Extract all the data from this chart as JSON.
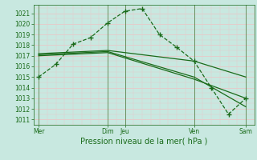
{
  "bg_color": "#c8e8e0",
  "grid_color": "#e8c8c8",
  "line_color": "#1a6b1a",
  "title": "Pression niveau de la mer( hPa )",
  "ylim": [
    1010.5,
    1021.8
  ],
  "yticks": [
    1011,
    1012,
    1013,
    1014,
    1015,
    1016,
    1017,
    1018,
    1019,
    1020,
    1021
  ],
  "vline_positions": [
    0,
    4,
    5,
    9,
    12
  ],
  "line1_x": [
    0,
    1,
    2,
    3,
    4,
    5,
    6,
    7,
    8,
    9,
    10,
    11,
    12
  ],
  "line1_y": [
    1015.0,
    1016.2,
    1018.1,
    1018.7,
    1020.1,
    1021.2,
    1021.45,
    1019.0,
    1017.8,
    1016.5,
    1014.0,
    1011.5,
    1013.0
  ],
  "line2_x": [
    0,
    4,
    9,
    12
  ],
  "line2_y": [
    1017.2,
    1017.5,
    1016.5,
    1015.0
  ],
  "line3_x": [
    0,
    4,
    9,
    12
  ],
  "line3_y": [
    1017.1,
    1017.4,
    1015.0,
    1012.2
  ],
  "line4_x": [
    0,
    4,
    9,
    12
  ],
  "line4_y": [
    1017.0,
    1017.3,
    1014.8,
    1013.0
  ]
}
